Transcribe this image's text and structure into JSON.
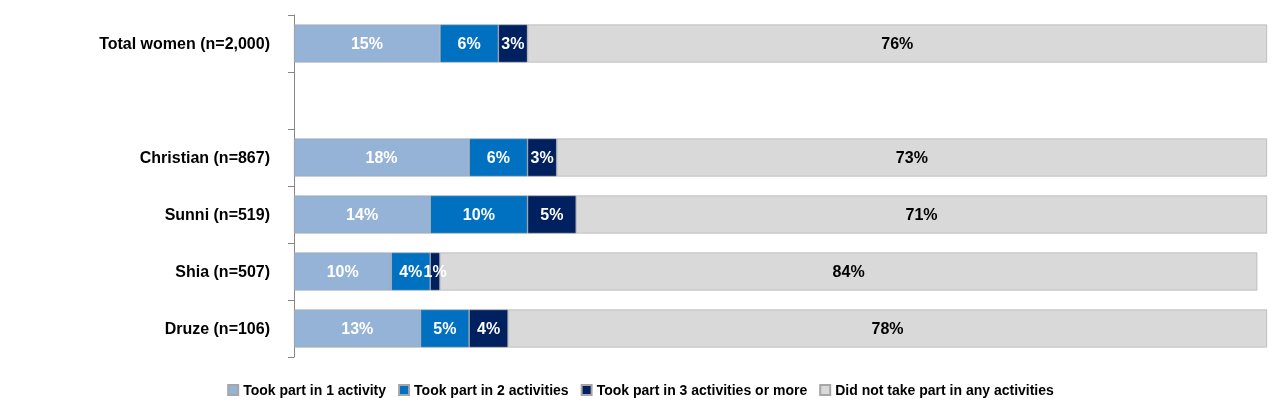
{
  "chart_data": {
    "type": "bar",
    "orientation": "horizontal",
    "stacked": true,
    "legend": "bottom",
    "categories": [
      "Total women (n=2,000)",
      null,
      "Christian (n=867)",
      "Sunni (n=519)",
      "Shia (n=507)",
      "Druze (n=106)"
    ],
    "series": [
      {
        "name": "Took part in 1 activity",
        "color": "#95b3d7",
        "values": [
          15,
          null,
          18,
          14,
          10,
          13
        ],
        "value_labels": [
          "15%",
          null,
          "18%",
          "14%",
          "10%",
          "13%"
        ]
      },
      {
        "name": "Took part in 2 activities",
        "color": "#0070c0",
        "values": [
          6,
          null,
          6,
          10,
          4,
          5
        ],
        "value_labels": [
          "6%",
          null,
          "6%",
          "10%",
          "4%",
          "5%"
        ]
      },
      {
        "name": "Took part in 3 activities or more",
        "color": "#002060",
        "values": [
          3,
          null,
          3,
          5,
          1,
          4
        ],
        "value_labels": [
          "3%",
          null,
          "3%",
          "5%",
          "1%",
          "4%"
        ]
      },
      {
        "name": "Did not take part in any activities",
        "color": "#d9d9d9",
        "values": [
          76,
          null,
          73,
          71,
          84,
          78
        ],
        "value_labels": [
          "76%",
          null,
          "73%",
          "71%",
          "84%",
          "78%"
        ]
      }
    ]
  }
}
